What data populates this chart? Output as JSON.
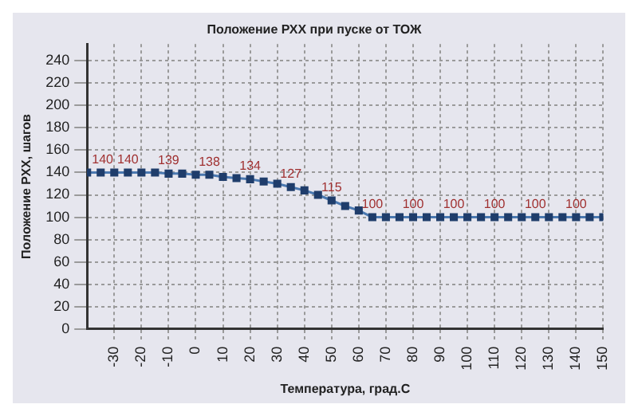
{
  "chart_data": {
    "type": "line",
    "title": "Положение РХХ при пуске от ТОЖ",
    "xlabel": "Температура, град.С",
    "ylabel": "Положение РХХ, шагов",
    "x": [
      -40,
      -35,
      -30,
      -25,
      -20,
      -15,
      -10,
      -5,
      0,
      5,
      10,
      15,
      20,
      25,
      30,
      35,
      40,
      45,
      50,
      55,
      60,
      65,
      70,
      75,
      80,
      85,
      90,
      95,
      100,
      105,
      110,
      115,
      120,
      125,
      130,
      135,
      140,
      145,
      150
    ],
    "series": [
      {
        "color": "#1f3d6b",
        "values": [
          140,
          140,
          140,
          140,
          140,
          140,
          139,
          139,
          138,
          138,
          136,
          135,
          134,
          132,
          130,
          127,
          124,
          120,
          115,
          110,
          106,
          100,
          100,
          100,
          100,
          100,
          100,
          100,
          100,
          100,
          100,
          100,
          100,
          100,
          100,
          100,
          100,
          100,
          100
        ],
        "value_labels": [
          "140",
          null,
          null,
          "140",
          null,
          null,
          "139",
          null,
          null,
          "138",
          null,
          null,
          "134",
          null,
          null,
          "127",
          null,
          null,
          "115",
          null,
          null,
          "100",
          null,
          null,
          "100",
          null,
          null,
          "100",
          null,
          null,
          "100",
          null,
          null,
          "100",
          null,
          null,
          "100",
          null,
          null
        ]
      }
    ],
    "xlim": [
      -40,
      150
    ],
    "xticks": [
      -30,
      -20,
      -10,
      0,
      10,
      20,
      30,
      40,
      50,
      60,
      70,
      80,
      90,
      100,
      110,
      120,
      130,
      140,
      150
    ],
    "ylim": [
      0,
      255
    ],
    "yticks": [
      0,
      20,
      40,
      60,
      80,
      100,
      120,
      140,
      160,
      180,
      200,
      220,
      240
    ],
    "grid": true,
    "legend": false,
    "marker": "square",
    "line_style": "solid"
  }
}
